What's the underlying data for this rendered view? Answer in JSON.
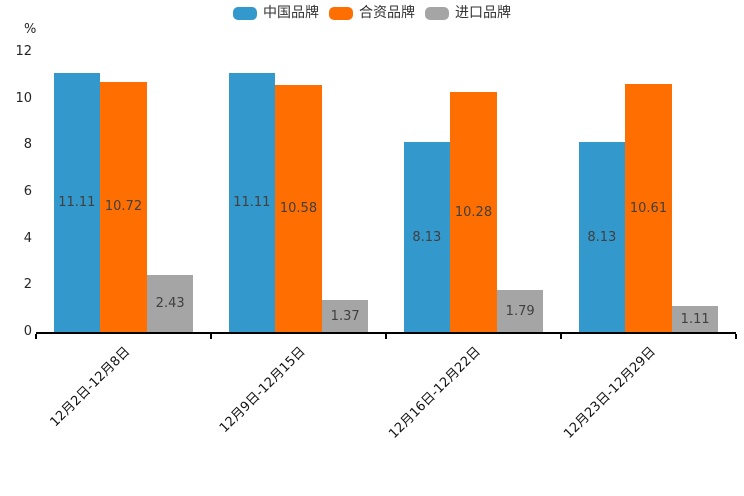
{
  "legend": {
    "items": [
      "中国品牌",
      "合资品牌",
      "进口品牌"
    ]
  },
  "chart_data": {
    "type": "bar",
    "title": "",
    "categories": [
      "12月2日-12月8日",
      "12月9日-12月15日",
      "12月16日-12月22日",
      "12月23日-12月29日"
    ],
    "series": [
      {
        "name": "中国品牌",
        "color": "#3398cb",
        "values": [
          11.11,
          11.11,
          8.13,
          8.13
        ]
      },
      {
        "name": "合资品牌",
        "color": "#ff6e00",
        "values": [
          10.72,
          10.58,
          10.28,
          10.61
        ]
      },
      {
        "name": "进口品牌",
        "color": "#a5a5a5",
        "values": [
          2.43,
          1.37,
          1.79,
          1.11
        ]
      }
    ],
    "xlabel": "",
    "ylabel": "%",
    "ylim": [
      0,
      12
    ],
    "yticks": [
      0,
      2,
      4,
      6,
      8,
      10,
      12
    ],
    "grid": false,
    "legend_position": "top",
    "value_labels": "inside-center",
    "axis_color": "#000000",
    "value_label_color": "#404040"
  }
}
